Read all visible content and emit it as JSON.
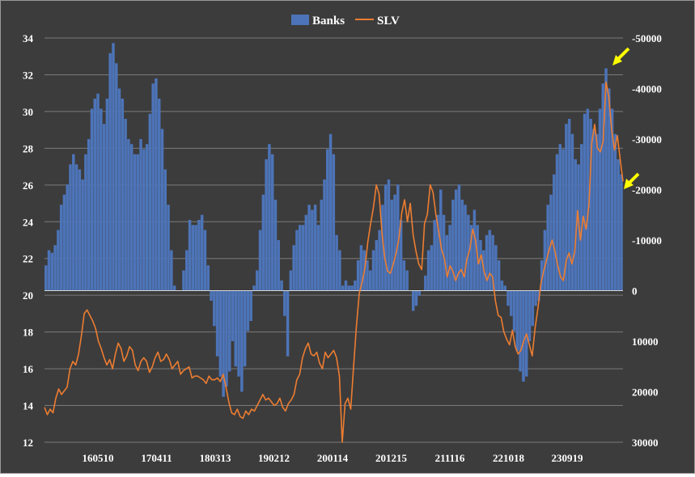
{
  "chart_data": {
    "type": "bar+line",
    "title": "",
    "legend": {
      "placement": "top-center"
    },
    "x_tick_labels": [
      "160510",
      "170411",
      "180313",
      "190212",
      "200114",
      "201215",
      "211116",
      "221018",
      "230919"
    ],
    "left_axis": {
      "ticks": [
        "34",
        "32",
        "30",
        "28",
        "26",
        "24",
        "22",
        "20",
        "18",
        "16",
        "14",
        "12"
      ],
      "range": [
        12,
        34
      ]
    },
    "right_axis": {
      "ticks": [
        "-50000",
        "-40000",
        "-30000",
        "-20000",
        "-10000",
        "0",
        "10000",
        "20000",
        "30000"
      ],
      "range": [
        -50000,
        30000
      ],
      "inverted": true
    },
    "grid": true,
    "series": [
      {
        "name": "Banks",
        "type": "bar",
        "axis": "right",
        "color": "#4d74b8",
        "values": [
          -5000,
          -8000,
          -7500,
          -9000,
          -12000,
          -17000,
          -19000,
          -21000,
          -25000,
          -27000,
          -25000,
          -24000,
          -22000,
          -27000,
          -30000,
          -36000,
          -38000,
          -39000,
          -36000,
          -33000,
          -38000,
          -47000,
          -49000,
          -45000,
          -40000,
          -38000,
          -34000,
          -30000,
          -29000,
          -27000,
          -27000,
          -30000,
          -28000,
          -29000,
          -35000,
          -41000,
          -42000,
          -38000,
          -32000,
          -24000,
          -17000,
          -8000,
          -1000,
          0,
          0,
          -4000,
          -8000,
          -14000,
          -13000,
          -13000,
          -14000,
          -15000,
          -12000,
          -5000,
          2000,
          7000,
          13000,
          17000,
          21000,
          19000,
          16000,
          10000,
          15000,
          17000,
          20000,
          15000,
          8000,
          6000,
          -1000,
          -4000,
          -12000,
          -19000,
          -26000,
          -29000,
          -27000,
          -18000,
          -10000,
          -2000,
          5000,
          13000,
          -4000,
          -9000,
          -12000,
          -13000,
          -13000,
          -15000,
          -17000,
          -16000,
          -17000,
          -13000,
          -18000,
          -22000,
          -28000,
          -31000,
          -27000,
          -11000,
          -8000,
          -1000,
          -2000,
          -1000,
          -1000,
          -2000,
          -6000,
          -9000,
          -8000,
          -6000,
          -4000,
          -8000,
          -10000,
          -12000,
          -17000,
          -21000,
          -22000,
          -18000,
          -19000,
          -21000,
          -14000,
          -6000,
          -4000,
          0,
          4000,
          3000,
          1000,
          0,
          -3000,
          -8000,
          -9000,
          -14000,
          -15000,
          -20000,
          -15000,
          -11000,
          -13000,
          -18000,
          -20000,
          -21000,
          -18000,
          -17000,
          -15000,
          -13000,
          -16000,
          -13000,
          -10000,
          -8000,
          -11000,
          -12000,
          -11000,
          -9000,
          -6000,
          -2000,
          -1000,
          3000,
          5000,
          8000,
          12000,
          16000,
          18000,
          17000,
          10000,
          7000,
          3000,
          2000,
          -6000,
          -12000,
          -17000,
          -19000,
          -23000,
          -27000,
          -29000,
          -28000,
          -33000,
          -34000,
          -31000,
          -26000,
          -25000,
          -29000,
          -35000,
          -36000,
          -34000,
          -32000,
          -31000,
          -36000,
          -41000,
          -44000,
          -40000,
          -36000,
          -31000,
          -26000,
          -23000
        ]
      },
      {
        "name": "SLV",
        "type": "line",
        "axis": "left",
        "color": "#ed7d31",
        "values": [
          13.9,
          13.5,
          13.8,
          13.6,
          14.4,
          14.9,
          14.6,
          14.8,
          15.0,
          16.0,
          16.4,
          16.2,
          16.8,
          17.8,
          19.0,
          19.2,
          18.9,
          18.6,
          18.2,
          17.5,
          17.1,
          16.6,
          16.2,
          16.5,
          16.0,
          16.8,
          17.4,
          17.1,
          16.4,
          16.7,
          17.2,
          17.0,
          16.2,
          15.9,
          16.4,
          16.6,
          16.4,
          15.8,
          16.1,
          16.6,
          16.9,
          16.4,
          16.5,
          16.8,
          16.5,
          16.0,
          16.2,
          16.4,
          15.7,
          15.9,
          16.0,
          16.1,
          15.5,
          15.6,
          15.6,
          15.5,
          15.4,
          15.2,
          15.6,
          15.4,
          15.4,
          15.5,
          15.3,
          15.7,
          15.0,
          14.2,
          13.6,
          13.5,
          13.8,
          13.4,
          13.3,
          13.7,
          13.5,
          13.8,
          13.7,
          14.0,
          14.3,
          14.6,
          14.3,
          14.4,
          14.2,
          14.0,
          14.1,
          14.4,
          13.9,
          13.7,
          14.1,
          14.3,
          14.6,
          15.4,
          15.7,
          16.6,
          17.1,
          17.4,
          16.8,
          16.7,
          16.9,
          16.3,
          16.0,
          16.9,
          16.6,
          16.8,
          17.0,
          16.6,
          15.6,
          12.0,
          14.1,
          14.4,
          13.8,
          16.1,
          18.3,
          20.1,
          20.7,
          21.5,
          22.9,
          23.9,
          24.8,
          26.0,
          25.5,
          23.4,
          22.0,
          21.3,
          21.2,
          21.7,
          22.3,
          23.1,
          24.5,
          25.2,
          24.0,
          25.0,
          23.3,
          22.4,
          21.7,
          21.4,
          23.9,
          24.4,
          26.0,
          25.6,
          24.4,
          23.5,
          22.5,
          22.0,
          21.0,
          21.6,
          21.3,
          20.8,
          21.2,
          21.4,
          21.0,
          22.0,
          22.5,
          23.6,
          23.0,
          21.7,
          22.2,
          21.3,
          20.8,
          21.2,
          21.0,
          19.7,
          18.9,
          18.8,
          18.0,
          17.6,
          17.3,
          18.1,
          17.2,
          16.8,
          17.0,
          17.5,
          17.9,
          17.3,
          16.7,
          18.2,
          19.3,
          20.6,
          21.3,
          21.9,
          22.5,
          23.0,
          22.4,
          21.6,
          21.0,
          20.8,
          21.9,
          22.3,
          21.7,
          22.4,
          24.6,
          23.0,
          24.3,
          23.6,
          24.9,
          28.3,
          29.3,
          28.0,
          27.8,
          28.4,
          31.6,
          30.8,
          29.0,
          27.9,
          28.7,
          27.4,
          26.2
        ]
      }
    ],
    "annotations": [
      {
        "type": "arrow",
        "color": "#ffff00",
        "near": "peak of Banks bars"
      },
      {
        "type": "arrow",
        "color": "#ffff00",
        "near": "latest SLV value"
      }
    ]
  }
}
